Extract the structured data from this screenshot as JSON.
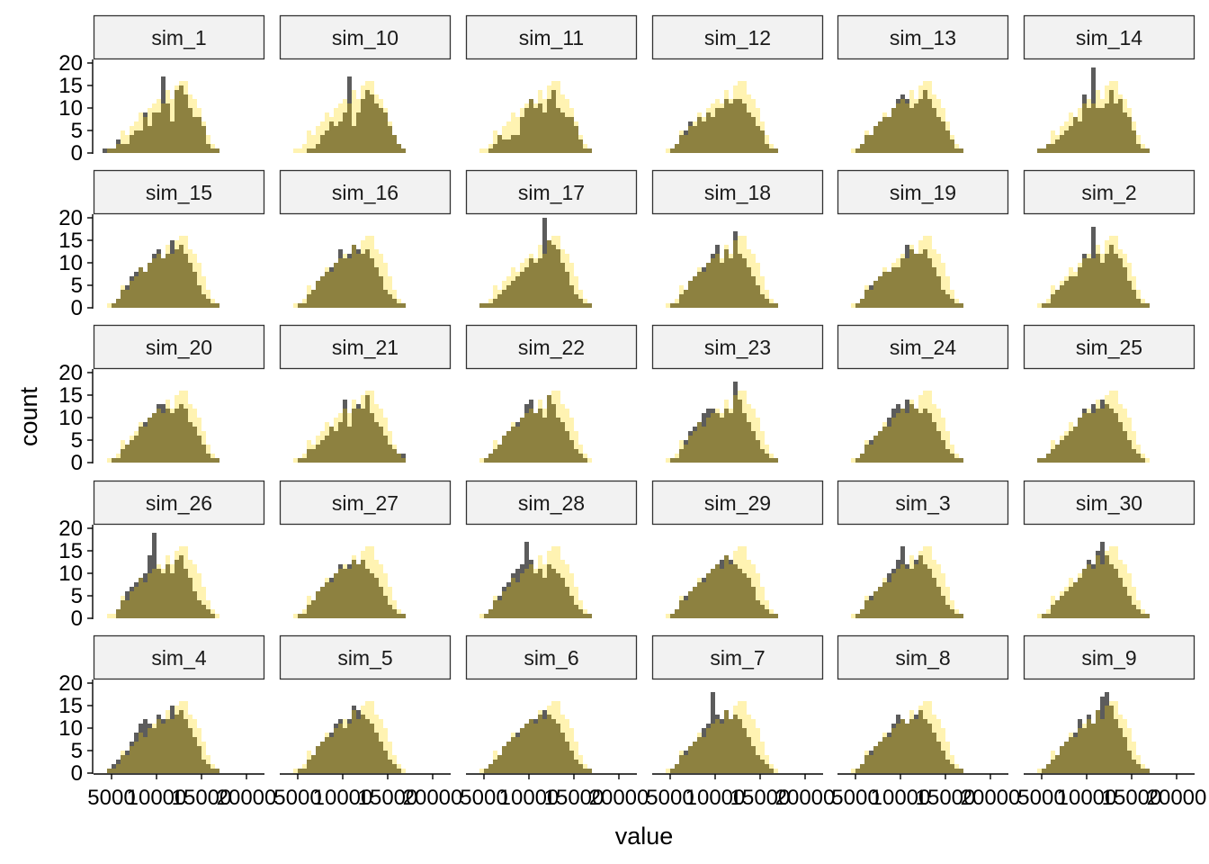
{
  "chart_data": {
    "type": "bar",
    "subtype": "faceted-histogram",
    "xlabel": "value",
    "ylabel": "count",
    "ylim": [
      0,
      20
    ],
    "xlim": [
      3000,
      22000
    ],
    "y_ticks": [
      0,
      5,
      10,
      15,
      20
    ],
    "y_tick_labels": [
      "0",
      "5",
      "10",
      "15",
      "20"
    ],
    "x_ticks": [
      5000,
      10000,
      15000,
      20000
    ],
    "x_tick_labels": [
      "5000",
      "10000",
      "15000",
      "20000"
    ],
    "grid": false,
    "legend": "none",
    "colors": {
      "overlay_fill": "#ffd700",
      "overlay_opacity": 0.3,
      "sim_fill": "#333333",
      "sim_opacity": 0.8,
      "strip_fill": "#f2f2f2",
      "strip_border": "#333333"
    },
    "facets": [
      "sim_1",
      "sim_10",
      "sim_11",
      "sim_12",
      "sim_13",
      "sim_14",
      "sim_15",
      "sim_16",
      "sim_17",
      "sim_18",
      "sim_19",
      "sim_2",
      "sim_20",
      "sim_21",
      "sim_22",
      "sim_23",
      "sim_24",
      "sim_25",
      "sim_26",
      "sim_27",
      "sim_28",
      "sim_29",
      "sim_3",
      "sim_30",
      "sim_4",
      "sim_5",
      "sim_6",
      "sim_7",
      "sim_8",
      "sim_9"
    ],
    "bins_start": 3500,
    "bin_width": 500,
    "overlay_counts": [
      0,
      0,
      1,
      1,
      2,
      5,
      4,
      6,
      7,
      9,
      8,
      10,
      11,
      12,
      11,
      14,
      12,
      15,
      16,
      16,
      13,
      12,
      10,
      7,
      4,
      2,
      1,
      0,
      0,
      0,
      0,
      0,
      0,
      0,
      0,
      0
    ],
    "series": [
      {
        "name": "sim_1",
        "values": [
          0,
          1,
          1,
          1,
          3,
          2,
          2,
          4,
          5,
          5,
          9,
          6,
          9,
          9,
          17,
          11,
          7,
          14,
          15,
          13,
          10,
          8,
          8,
          6,
          2,
          1,
          1,
          0,
          0,
          0,
          0,
          0,
          0,
          0,
          0,
          0
        ]
      },
      {
        "name": "sim_10",
        "values": [
          0,
          0,
          0,
          0,
          0,
          1,
          1,
          2,
          4,
          5,
          7,
          6,
          7,
          9,
          17,
          6,
          9,
          12,
          14,
          13,
          11,
          10,
          9,
          6,
          4,
          2,
          1,
          0,
          0,
          0,
          0,
          0,
          0,
          0,
          0,
          0
        ]
      },
      {
        "name": "sim_11",
        "values": [
          0,
          0,
          0,
          0,
          1,
          2,
          4,
          3,
          3,
          4,
          4,
          8,
          10,
          12,
          10,
          11,
          9,
          12,
          14,
          10,
          9,
          8,
          8,
          6,
          3,
          1,
          1,
          0,
          0,
          0,
          0,
          0,
          0,
          0,
          0,
          0
        ]
      },
      {
        "name": "sim_12",
        "values": [
          0,
          0,
          0,
          1,
          2,
          4,
          5,
          7,
          6,
          8,
          7,
          9,
          8,
          10,
          10,
          12,
          11,
          12,
          12,
          11,
          9,
          8,
          6,
          5,
          2,
          1,
          1,
          0,
          0,
          0,
          0,
          0,
          0,
          0,
          0,
          0
        ]
      },
      {
        "name": "sim_13",
        "values": [
          0,
          0,
          0,
          1,
          2,
          4,
          4,
          6,
          7,
          8,
          8,
          10,
          12,
          13,
          12,
          10,
          11,
          12,
          14,
          12,
          10,
          8,
          7,
          5,
          3,
          1,
          1,
          0,
          0,
          0,
          0,
          0,
          0,
          0,
          0,
          0
        ]
      },
      {
        "name": "sim_14",
        "values": [
          0,
          0,
          1,
          1,
          2,
          2,
          3,
          4,
          5,
          6,
          8,
          7,
          13,
          10,
          19,
          10,
          10,
          11,
          14,
          11,
          12,
          9,
          8,
          5,
          2,
          1,
          1,
          0,
          0,
          0,
          0,
          0,
          0,
          0,
          0,
          0
        ]
      },
      {
        "name": "sim_15",
        "values": [
          0,
          0,
          0,
          1,
          2,
          4,
          5,
          7,
          8,
          9,
          8,
          10,
          12,
          13,
          11,
          12,
          15,
          13,
          14,
          12,
          10,
          8,
          5,
          3,
          2,
          1,
          1,
          0,
          0,
          0,
          0,
          0,
          0,
          0,
          0,
          0
        ]
      },
      {
        "name": "sim_16",
        "values": [
          0,
          0,
          0,
          1,
          1,
          3,
          4,
          6,
          7,
          8,
          9,
          10,
          13,
          11,
          12,
          14,
          13,
          12,
          13,
          11,
          9,
          7,
          4,
          3,
          2,
          1,
          1,
          0,
          0,
          0,
          0,
          0,
          0,
          0,
          0,
          0
        ]
      },
      {
        "name": "sim_17",
        "values": [
          0,
          0,
          1,
          1,
          1,
          2,
          3,
          4,
          5,
          6,
          7,
          8,
          9,
          11,
          10,
          11,
          20,
          15,
          14,
          13,
          10,
          8,
          5,
          3,
          2,
          1,
          1,
          0,
          0,
          0,
          0,
          0,
          0,
          0,
          0,
          0
        ]
      },
      {
        "name": "sim_18",
        "values": [
          0,
          0,
          0,
          1,
          1,
          3,
          4,
          6,
          7,
          8,
          9,
          10,
          12,
          14,
          10,
          13,
          11,
          17,
          12,
          11,
          9,
          7,
          5,
          3,
          2,
          1,
          1,
          0,
          0,
          0,
          0,
          0,
          0,
          0,
          0,
          0
        ]
      },
      {
        "name": "sim_19",
        "values": [
          0,
          0,
          0,
          1,
          2,
          4,
          5,
          6,
          7,
          8,
          8,
          9,
          9,
          11,
          14,
          13,
          12,
          12,
          13,
          11,
          9,
          7,
          4,
          3,
          2,
          1,
          1,
          0,
          0,
          0,
          0,
          0,
          0,
          0,
          0,
          0
        ]
      },
      {
        "name": "sim_2",
        "values": [
          0,
          0,
          0,
          1,
          1,
          3,
          4,
          5,
          6,
          7,
          7,
          9,
          12,
          11,
          18,
          12,
          10,
          12,
          14,
          12,
          11,
          9,
          6,
          4,
          2,
          1,
          1,
          0,
          0,
          0,
          0,
          0,
          0,
          0,
          0,
          0
        ]
      },
      {
        "name": "sim_20",
        "values": [
          0,
          0,
          0,
          1,
          1,
          3,
          4,
          5,
          6,
          8,
          9,
          10,
          11,
          13,
          13,
          12,
          11,
          12,
          13,
          12,
          9,
          8,
          6,
          4,
          2,
          1,
          1,
          0,
          0,
          0,
          0,
          0,
          0,
          0,
          0,
          0
        ]
      },
      {
        "name": "sim_21",
        "values": [
          0,
          0,
          0,
          1,
          1,
          3,
          3,
          4,
          5,
          6,
          8,
          7,
          9,
          14,
          8,
          12,
          13,
          12,
          15,
          11,
          9,
          8,
          6,
          4,
          3,
          2,
          2,
          0,
          0,
          0,
          0,
          0,
          0,
          0,
          0,
          0
        ]
      },
      {
        "name": "sim_22",
        "values": [
          0,
          0,
          0,
          1,
          2,
          3,
          4,
          6,
          7,
          8,
          9,
          10,
          13,
          14,
          11,
          12,
          10,
          15,
          13,
          10,
          9,
          7,
          5,
          3,
          2,
          1,
          0,
          0,
          0,
          0,
          0,
          0,
          0,
          0,
          0,
          0
        ]
      },
      {
        "name": "sim_23",
        "values": [
          0,
          0,
          0,
          1,
          1,
          3,
          5,
          7,
          8,
          9,
          11,
          12,
          12,
          11,
          10,
          12,
          11,
          18,
          14,
          11,
          9,
          7,
          5,
          3,
          2,
          1,
          1,
          0,
          0,
          0,
          0,
          0,
          0,
          0,
          0,
          0
        ]
      },
      {
        "name": "sim_24",
        "values": [
          0,
          0,
          0,
          1,
          2,
          4,
          5,
          6,
          7,
          8,
          10,
          12,
          13,
          12,
          14,
          13,
          12,
          11,
          12,
          11,
          9,
          7,
          5,
          3,
          2,
          1,
          1,
          0,
          0,
          0,
          0,
          0,
          0,
          0,
          0,
          0
        ]
      },
      {
        "name": "sim_25",
        "values": [
          0,
          0,
          1,
          1,
          2,
          3,
          4,
          5,
          6,
          7,
          8,
          10,
          12,
          11,
          13,
          12,
          14,
          13,
          12,
          11,
          9,
          7,
          5,
          3,
          2,
          1,
          0,
          0,
          0,
          0,
          0,
          0,
          0,
          0,
          0,
          0
        ]
      },
      {
        "name": "sim_26",
        "values": [
          0,
          0,
          0,
          0,
          2,
          4,
          6,
          7,
          8,
          9,
          10,
          14,
          19,
          11,
          10,
          12,
          10,
          13,
          14,
          11,
          9,
          6,
          4,
          3,
          2,
          1,
          0,
          0,
          0,
          0,
          0,
          0,
          0,
          0,
          0,
          0
        ]
      },
      {
        "name": "sim_27",
        "values": [
          0,
          0,
          0,
          1,
          1,
          3,
          4,
          6,
          7,
          8,
          9,
          10,
          12,
          11,
          12,
          13,
          12,
          13,
          11,
          10,
          9,
          7,
          5,
          3,
          2,
          1,
          1,
          0,
          0,
          0,
          0,
          0,
          0,
          0,
          0,
          0
        ]
      },
      {
        "name": "sim_28",
        "values": [
          0,
          0,
          0,
          1,
          2,
          4,
          5,
          7,
          8,
          10,
          11,
          12,
          17,
          13,
          10,
          11,
          9,
          12,
          11,
          10,
          9,
          7,
          5,
          3,
          2,
          1,
          1,
          0,
          0,
          0,
          0,
          0,
          0,
          0,
          0,
          0
        ]
      },
      {
        "name": "sim_29",
        "values": [
          0,
          0,
          0,
          1,
          2,
          4,
          5,
          6,
          7,
          8,
          9,
          10,
          11,
          12,
          13,
          14,
          13,
          12,
          11,
          10,
          9,
          7,
          4,
          3,
          2,
          1,
          1,
          0,
          0,
          0,
          0,
          0,
          0,
          0,
          0,
          0
        ]
      },
      {
        "name": "sim_3",
        "values": [
          0,
          0,
          0,
          1,
          2,
          4,
          5,
          6,
          7,
          8,
          10,
          11,
          13,
          16,
          12,
          11,
          13,
          14,
          12,
          11,
          9,
          7,
          5,
          3,
          2,
          1,
          1,
          0,
          0,
          0,
          0,
          0,
          0,
          0,
          0,
          0
        ]
      },
      {
        "name": "sim_30",
        "values": [
          0,
          0,
          0,
          1,
          1,
          3,
          4,
          5,
          6,
          7,
          8,
          9,
          11,
          13,
          12,
          15,
          17,
          14,
          12,
          11,
          9,
          7,
          5,
          3,
          2,
          1,
          1,
          0,
          0,
          0,
          0,
          0,
          0,
          0,
          0,
          0
        ]
      },
      {
        "name": "sim_4",
        "values": [
          0,
          0,
          1,
          2,
          3,
          4,
          5,
          7,
          9,
          11,
          12,
          11,
          10,
          13,
          12,
          12,
          15,
          13,
          14,
          12,
          10,
          8,
          6,
          3,
          2,
          1,
          1,
          0,
          0,
          0,
          0,
          0,
          0,
          0,
          0,
          0
        ]
      },
      {
        "name": "sim_5",
        "values": [
          0,
          0,
          0,
          1,
          1,
          3,
          4,
          6,
          7,
          8,
          9,
          11,
          12,
          10,
          12,
          15,
          14,
          13,
          12,
          11,
          9,
          7,
          5,
          3,
          2,
          1,
          0,
          0,
          0,
          0,
          0,
          0,
          0,
          0,
          0,
          0
        ]
      },
      {
        "name": "sim_6",
        "values": [
          0,
          0,
          0,
          1,
          2,
          3,
          4,
          6,
          7,
          8,
          9,
          10,
          11,
          12,
          12,
          13,
          14,
          13,
          12,
          11,
          9,
          7,
          5,
          3,
          2,
          1,
          1,
          0,
          0,
          0,
          0,
          0,
          0,
          0,
          0,
          0
        ]
      },
      {
        "name": "sim_7",
        "values": [
          0,
          0,
          0,
          1,
          2,
          4,
          5,
          6,
          7,
          8,
          10,
          11,
          18,
          13,
          12,
          14,
          12,
          13,
          12,
          10,
          8,
          6,
          4,
          3,
          2,
          1,
          0,
          0,
          0,
          0,
          0,
          0,
          0,
          0,
          0,
          0
        ]
      },
      {
        "name": "sim_8",
        "values": [
          0,
          0,
          0,
          1,
          2,
          4,
          5,
          6,
          7,
          8,
          9,
          11,
          13,
          12,
          11,
          12,
          13,
          14,
          12,
          11,
          9,
          7,
          5,
          3,
          2,
          1,
          1,
          0,
          0,
          0,
          0,
          0,
          0,
          0,
          0,
          0
        ]
      },
      {
        "name": "sim_9",
        "values": [
          0,
          0,
          0,
          1,
          2,
          3,
          4,
          6,
          7,
          8,
          9,
          12,
          10,
          13,
          11,
          14,
          17,
          18,
          15,
          12,
          10,
          8,
          5,
          3,
          2,
          1,
          1,
          0,
          0,
          0,
          0,
          0,
          0,
          0,
          0,
          0
        ]
      }
    ]
  }
}
